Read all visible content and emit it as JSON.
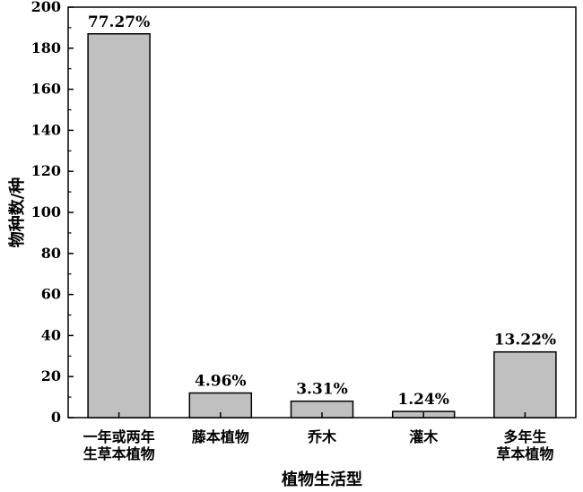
{
  "chart_data": {
    "type": "bar",
    "categories": [
      [
        "一年或两年",
        "生草本植物"
      ],
      [
        "藤本植物"
      ],
      [
        "乔木"
      ],
      [
        "灌木"
      ],
      [
        "多年生",
        "草本植物"
      ]
    ],
    "values": [
      187,
      12,
      8,
      3,
      32
    ],
    "data_labels": [
      "77.27%",
      "4.96%",
      "3.31%",
      "1.24%",
      "13.22%"
    ],
    "xlabel": "植物生活型",
    "ylabel": "物种数/种",
    "ylim": [
      0,
      200
    ],
    "yticks": [
      0,
      20,
      40,
      60,
      80,
      100,
      120,
      140,
      160,
      180,
      200
    ],
    "grid": false,
    "colors": {
      "bar_fill": "#c0c0c0",
      "bar_stroke": "#000000"
    }
  }
}
